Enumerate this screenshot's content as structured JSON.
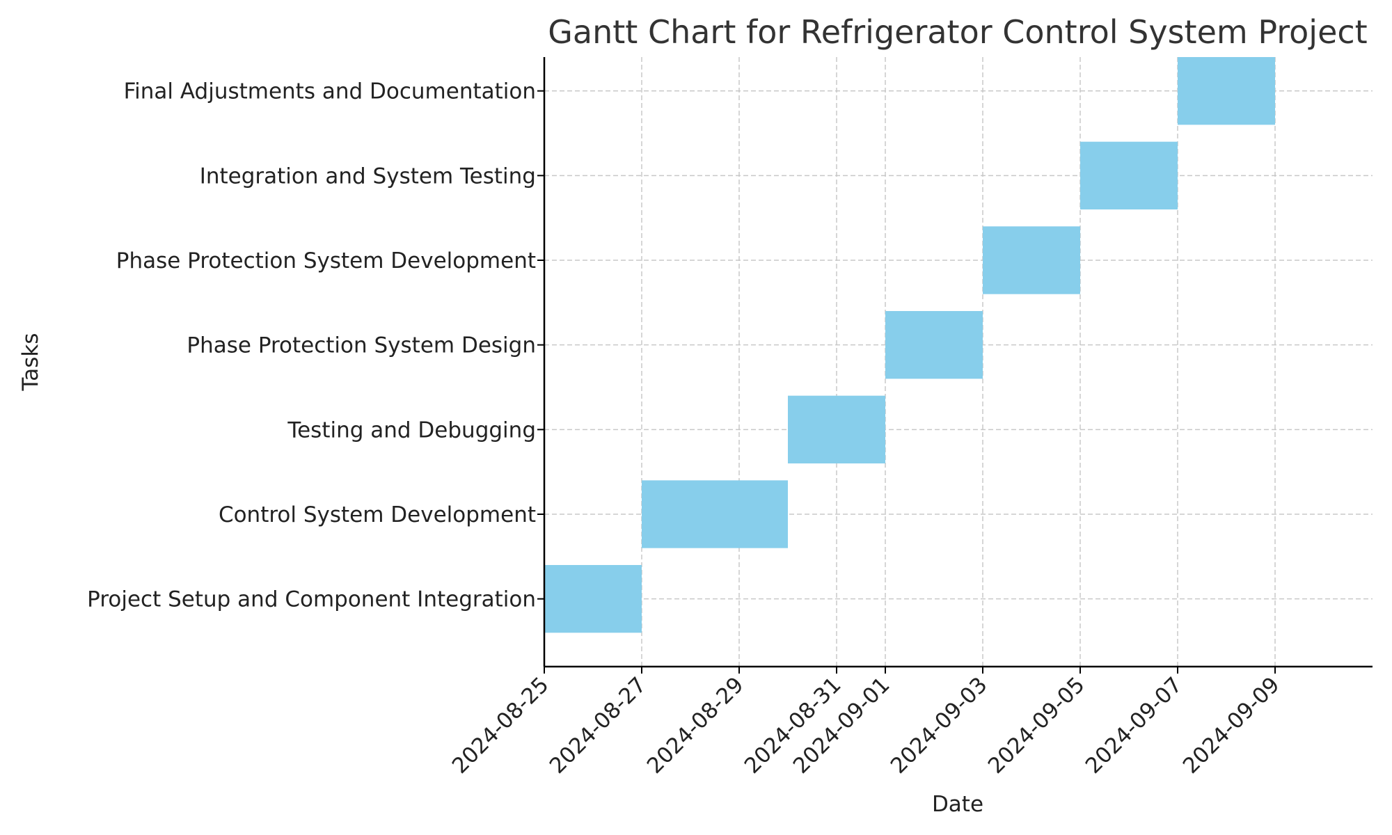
{
  "chart_data": {
    "type": "bar",
    "orientation": "horizontal",
    "title": "Gantt Chart for Refrigerator Control System Project",
    "xlabel": "Date",
    "ylabel": "Tasks",
    "xlim": [
      "2024-08-25",
      "2024-09-11"
    ],
    "x_ticks": [
      "2024-08-25",
      "2024-08-27",
      "2024-08-29",
      "2024-08-31",
      "2024-09-01",
      "2024-09-03",
      "2024-09-05",
      "2024-09-07",
      "2024-09-09"
    ],
    "grid": true,
    "bar_color": "#87CEEB",
    "tasks": [
      {
        "name": "Project Setup and Component Integration",
        "start": "2024-08-25",
        "end": "2024-08-27"
      },
      {
        "name": "Control System Development",
        "start": "2024-08-27",
        "end": "2024-08-30"
      },
      {
        "name": "Testing and Debugging",
        "start": "2024-08-30",
        "end": "2024-09-01"
      },
      {
        "name": "Phase Protection System Design",
        "start": "2024-09-01",
        "end": "2024-09-03"
      },
      {
        "name": "Phase Protection System Development",
        "start": "2024-09-03",
        "end": "2024-09-05"
      },
      {
        "name": "Integration and System Testing",
        "start": "2024-09-05",
        "end": "2024-09-07"
      },
      {
        "name": "Final Adjustments and Documentation",
        "start": "2024-09-07",
        "end": "2024-09-09"
      }
    ]
  }
}
